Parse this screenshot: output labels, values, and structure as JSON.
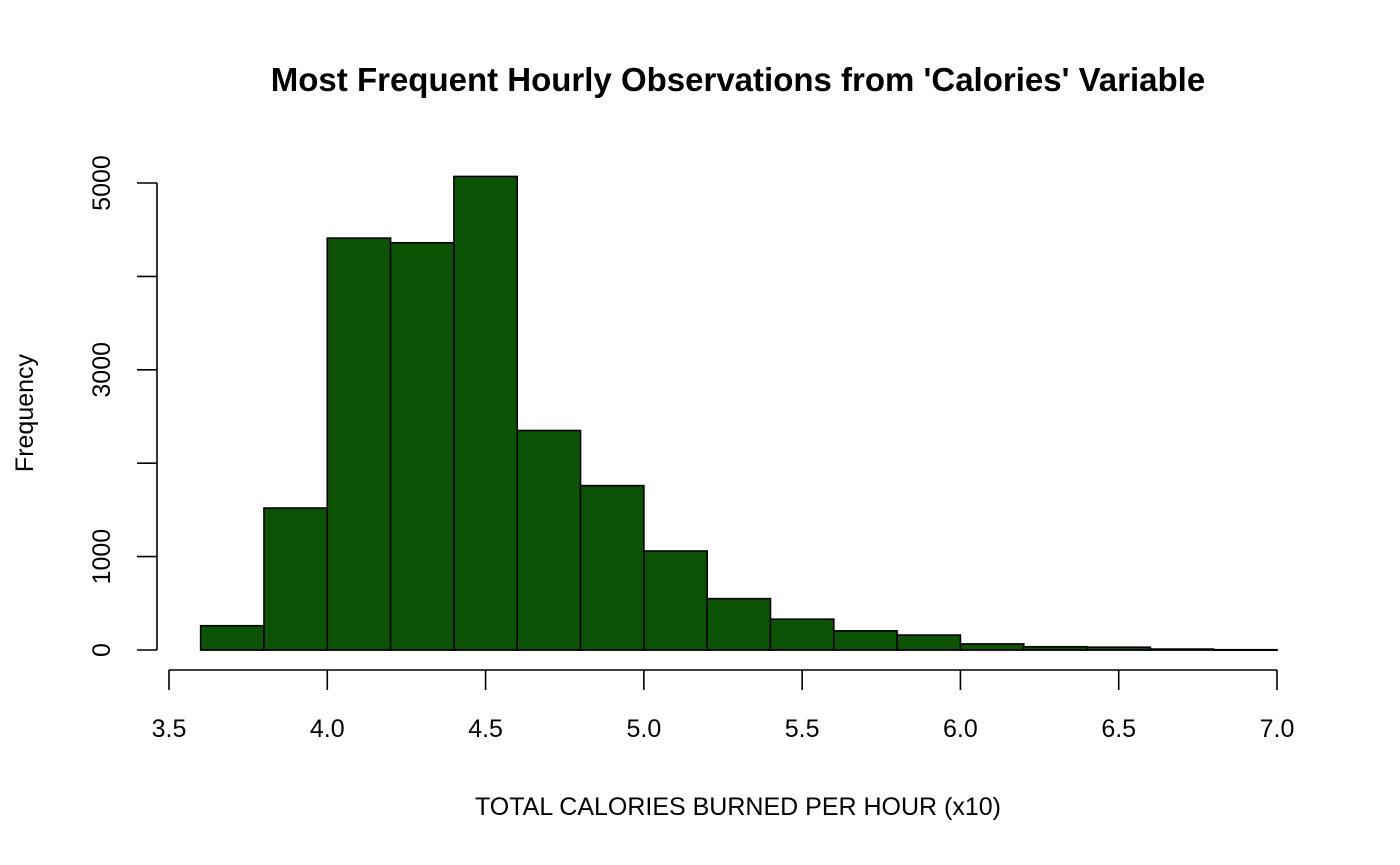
{
  "chart_data": {
    "type": "bar",
    "subtype": "histogram",
    "title": "Most Frequent Hourly Observations from 'Calories' Variable",
    "xlabel": "TOTAL CALORIES BURNED PER HOUR (x10)",
    "ylabel": "Frequency",
    "xlim": [
      3.5,
      7.0
    ],
    "ylim": [
      0,
      5000
    ],
    "x_ticks": [
      "3.5",
      "4.0",
      "4.5",
      "5.0",
      "5.5",
      "6.0",
      "6.5",
      "7.0"
    ],
    "y_ticks": [
      "0",
      "1000",
      "3000",
      "5000"
    ],
    "y_tick_values_unlabeled": [
      2000,
      4000
    ],
    "bar_color": "#0c5306",
    "grid": false,
    "bins": [
      {
        "x0": 3.6,
        "x1": 3.8,
        "value": 260
      },
      {
        "x0": 3.8,
        "x1": 4.0,
        "value": 1520
      },
      {
        "x0": 4.0,
        "x1": 4.2,
        "value": 4410
      },
      {
        "x0": 4.2,
        "x1": 4.4,
        "value": 4360
      },
      {
        "x0": 4.4,
        "x1": 4.6,
        "value": 5070
      },
      {
        "x0": 4.6,
        "x1": 4.8,
        "value": 2350
      },
      {
        "x0": 4.8,
        "x1": 5.0,
        "value": 1760
      },
      {
        "x0": 5.0,
        "x1": 5.2,
        "value": 1060
      },
      {
        "x0": 5.2,
        "x1": 5.4,
        "value": 550
      },
      {
        "x0": 5.4,
        "x1": 5.6,
        "value": 330
      },
      {
        "x0": 5.6,
        "x1": 5.8,
        "value": 205
      },
      {
        "x0": 5.8,
        "x1": 6.0,
        "value": 160
      },
      {
        "x0": 6.0,
        "x1": 6.2,
        "value": 65
      },
      {
        "x0": 6.2,
        "x1": 6.4,
        "value": 35
      },
      {
        "x0": 6.4,
        "x1": 6.6,
        "value": 30
      },
      {
        "x0": 6.6,
        "x1": 6.8,
        "value": 10
      },
      {
        "x0": 6.8,
        "x1": 7.0,
        "value": 3
      }
    ]
  }
}
